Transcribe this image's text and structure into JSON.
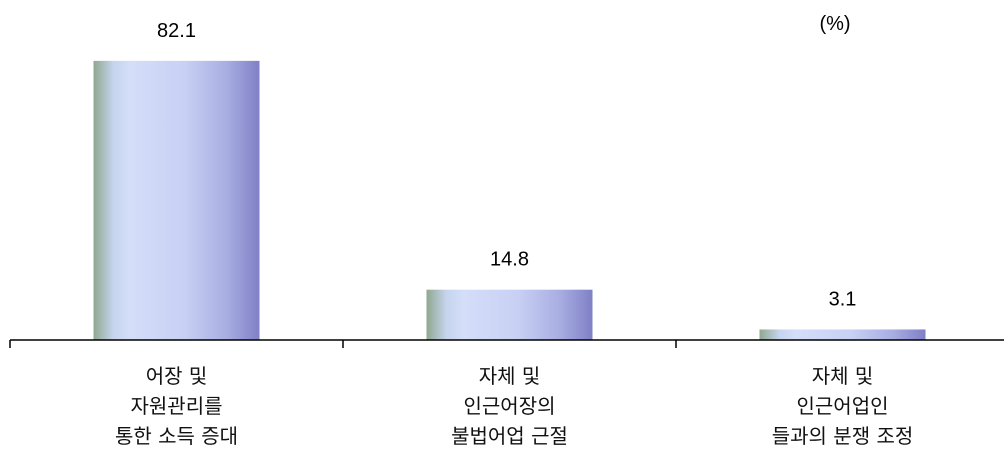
{
  "chart_data": {
    "type": "bar",
    "unit_label": "(%)",
    "categories": [
      [
        "어장 및",
        "자원관리를",
        "통한 소득 증대"
      ],
      [
        "자체 및",
        "인근어장의",
        "불법어업 근절"
      ],
      [
        "자체 및",
        "인근어업인",
        "들과의 분쟁 조정"
      ]
    ],
    "values": [
      82.1,
      14.8,
      3.1
    ],
    "value_labels": [
      "82.1",
      "14.8",
      "3.1"
    ],
    "ylim": [
      0,
      100
    ],
    "grid": false,
    "legend": "none",
    "colors": {
      "bar_left": "#8fa88f",
      "bar_light": "#d0dcf8",
      "bar_mid": "#c4ccf2",
      "bar_right": "#8080c8",
      "axis": "#000000"
    }
  }
}
